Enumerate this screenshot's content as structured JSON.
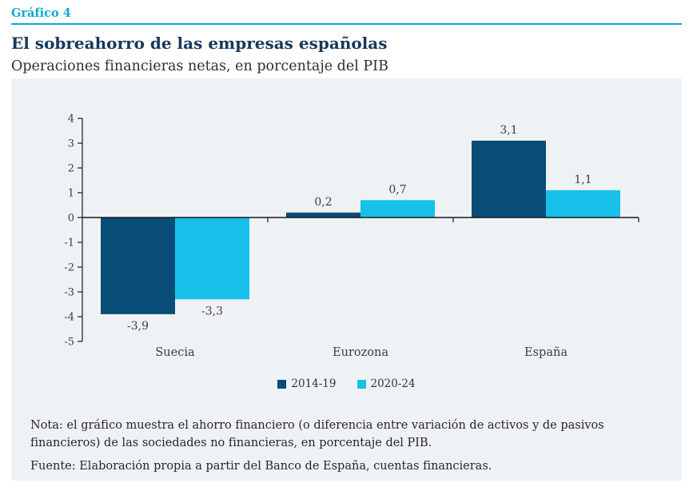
{
  "header": {
    "chart_number": "Gráfico 4",
    "title": "El sobreahorro de las empresas españolas",
    "subtitle": "Operaciones financieras netas, en porcentaje del PIB"
  },
  "colors": {
    "accent_cyan": "#0aa8da",
    "title_navy": "#16395c",
    "panel_background": "#eff2f4",
    "series_2014_19": "#074d78",
    "series_2020_24": "#17c0e9",
    "axis_line": "#1a1a1a",
    "chart_text": "#3c3c3c"
  },
  "chart_data": {
    "type": "bar",
    "title": "El sobreahorro de las empresas españolas",
    "subtitle": "Operaciones financieras netas, en porcentaje del PIB",
    "categories": [
      "Suecia",
      "Eurozona",
      "España"
    ],
    "series": [
      {
        "name": "2014-19",
        "color": "#074d78",
        "values": [
          -3.9,
          0.2,
          3.1
        ],
        "labels": [
          "-3,9",
          "0,2",
          "3,1"
        ]
      },
      {
        "name": "2020-24",
        "color": "#17c0e9",
        "values": [
          -3.3,
          0.7,
          1.1
        ],
        "labels": [
          "-3,3",
          "0,7",
          "1,1"
        ]
      }
    ],
    "xlabel": "",
    "ylabel": "",
    "ylim": [
      -5,
      4
    ],
    "yticks": [
      4,
      3,
      2,
      1,
      0,
      -1,
      -2,
      -3,
      -4,
      -5
    ],
    "grid": false,
    "legend_position": "bottom-center"
  },
  "footer": {
    "note": "Nota: el gráfico muestra el ahorro financiero (o diferencia entre variación de activos y de pasivos financieros) de las sociedades no financieras, en porcentaje del PIB.",
    "source": "Fuente: Elaboración propia a partir del Banco de España, cuentas financieras."
  }
}
